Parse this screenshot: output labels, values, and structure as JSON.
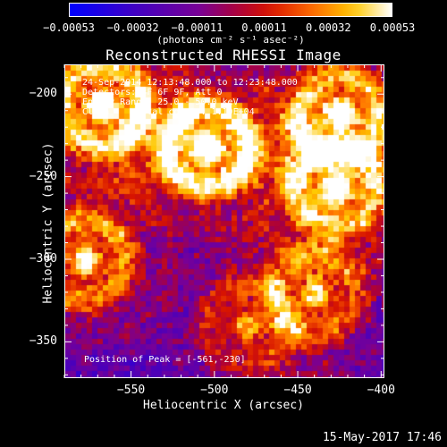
{
  "chart_data": {
    "type": "heatmap",
    "title": "Reconstructed RHESSI Image",
    "xlabel": "Heliocentric X (arcsec)",
    "ylabel": "Heliocentric Y (arcsec)",
    "xlim": [
      -590,
      -398
    ],
    "ylim": [
      -372,
      -182
    ],
    "x_ticks": [
      -550,
      -500,
      -450,
      -400
    ],
    "y_ticks": [
      -350,
      -300,
      -250,
      -200
    ],
    "x_tick_labels": [
      "−550",
      "−500",
      "−450",
      "−400"
    ],
    "y_tick_labels": [
      "−350",
      "−300",
      "−250",
      "−200"
    ],
    "colorbar": {
      "ticks": [
        -0.00053,
        -0.00032,
        -0.00011,
        0.00011,
        0.00032,
        0.00053
      ],
      "tick_labels": [
        "−0.00053",
        "−0.00032",
        "−0.00011",
        "0.00011",
        "0.00032",
        "0.00053"
      ],
      "units": "(photons cm⁻² s⁻¹ asec⁻²)",
      "range": [
        -0.00053,
        0.00053
      ]
    },
    "annotations": {
      "time_range": "24-Sep-2014 12:13:48.000 to 12:23:48.000",
      "detectors": "Detectors: 3F 6F 9F, Att 0",
      "energy_range": "Energy Range: 25.0 - 50.0 keV",
      "method": "Clean     Total counts: 1.10E+04",
      "peak": "Position of Peak = [-561,-230]"
    },
    "peak_position": [
      -561,
      -230
    ],
    "sources": [
      {
        "x": -505,
        "y": -232,
        "intensity": 1.0
      },
      {
        "x": -568,
        "y": -207,
        "intensity": 0.9
      },
      {
        "x": -425,
        "y": -212,
        "intensity": 0.8
      },
      {
        "x": -427,
        "y": -256,
        "intensity": 0.75
      },
      {
        "x": -578,
        "y": -300,
        "intensity": 0.75
      },
      {
        "x": -440,
        "y": -320,
        "intensity": 0.55
      },
      {
        "x": -480,
        "y": -340,
        "intensity": 0.45
      }
    ]
  },
  "footer": {
    "date": "15-May-2017 17:46"
  },
  "colors": {
    "background": "#000000",
    "foreground": "#ffffff"
  }
}
